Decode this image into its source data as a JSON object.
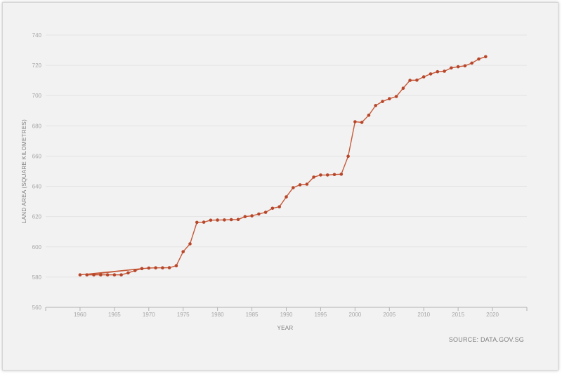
{
  "chart_data": {
    "type": "line",
    "title": "",
    "xlabel": "YEAR",
    "ylabel": "LAND AREA (SQUARE KILOMETRES)",
    "source": "SOURCE: DATA.GOV.SG",
    "xlim": [
      1955,
      2025
    ],
    "ylim": [
      560,
      740
    ],
    "xticks": [
      "1960",
      "1965",
      "1970",
      "1975",
      "1980",
      "1985",
      "1990",
      "1995",
      "2000",
      "2005",
      "2010",
      "2015",
      "2020"
    ],
    "yticks": [
      "560",
      "580",
      "600",
      "620",
      "640",
      "660",
      "680",
      "700",
      "720",
      "740"
    ],
    "grid": true,
    "line_color": "#c65a3a",
    "point_color": "#b8462a",
    "series": [
      {
        "x": [
          1960,
          1969,
          1961,
          1962,
          1963,
          1964,
          1965,
          1966,
          1967,
          1968,
          1969,
          1970,
          1971,
          1972,
          1973,
          1974,
          1975,
          1976,
          1977,
          1978,
          1979,
          1980,
          1981,
          1982,
          1983,
          1984,
          1985,
          1986,
          1987,
          1988,
          1989,
          1990,
          1991,
          1992,
          1993,
          1994,
          1995,
          1996,
          1997,
          1998,
          1999,
          2000,
          2001,
          2002,
          2003,
          2004,
          2005,
          2006,
          2007,
          2008,
          2009,
          2010,
          2011,
          2012,
          2013,
          2014,
          2015,
          2016,
          2017,
          2018,
          2019
        ],
        "y": [
          581.5,
          585.6,
          581.5,
          581.5,
          581.5,
          581.5,
          581.5,
          581.5,
          582.8,
          584.3,
          585.6,
          586.0,
          586.1,
          586.1,
          586.2,
          587.5,
          596.8,
          602.0,
          616.2,
          616.3,
          617.6,
          617.7,
          617.8,
          618.0,
          618.1,
          620.0,
          620.5,
          621.7,
          622.8,
          625.5,
          626.5,
          633.0,
          639.1,
          641.0,
          641.4,
          646.1,
          647.5,
          647.5,
          647.8,
          648.0,
          659.9,
          682.7,
          682.3,
          687.0,
          693.4,
          696.1,
          697.9,
          699.4,
          704.9,
          710.1,
          710.2,
          712.4,
          714.3,
          715.8,
          716.1,
          718.3,
          719.1,
          719.7,
          721.5,
          724.2,
          725.7
        ]
      }
    ]
  }
}
